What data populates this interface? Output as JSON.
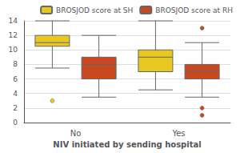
{
  "chart_data": {
    "type": "boxplot",
    "xlabel": "NIV initiated by sending hospital",
    "categories": [
      "No",
      "Yes"
    ],
    "series": [
      {
        "name": "BROSJOD score at SH",
        "color": "#E8C820",
        "values": [
          [
            7.5,
            10.5,
            11.0,
            12.0,
            14.0
          ],
          [
            4.5,
            7.0,
            9.0,
            10.0,
            14.0
          ]
        ],
        "fliers": [
          [
            3.0
          ],
          []
        ]
      },
      {
        "name": "BROSJOD score at RH",
        "color": "#C84820",
        "values": [
          [
            3.5,
            6.0,
            8.0,
            9.0,
            12.0
          ],
          [
            3.5,
            6.0,
            7.0,
            8.0,
            11.0
          ]
        ],
        "fliers": [
          [],
          [
            13.0,
            2.0,
            1.0
          ]
        ]
      }
    ],
    "ylim": [
      0,
      14
    ],
    "yticks": [
      0,
      2,
      4,
      6,
      8,
      10,
      12,
      14
    ],
    "grid": true,
    "legend": "upper right"
  }
}
